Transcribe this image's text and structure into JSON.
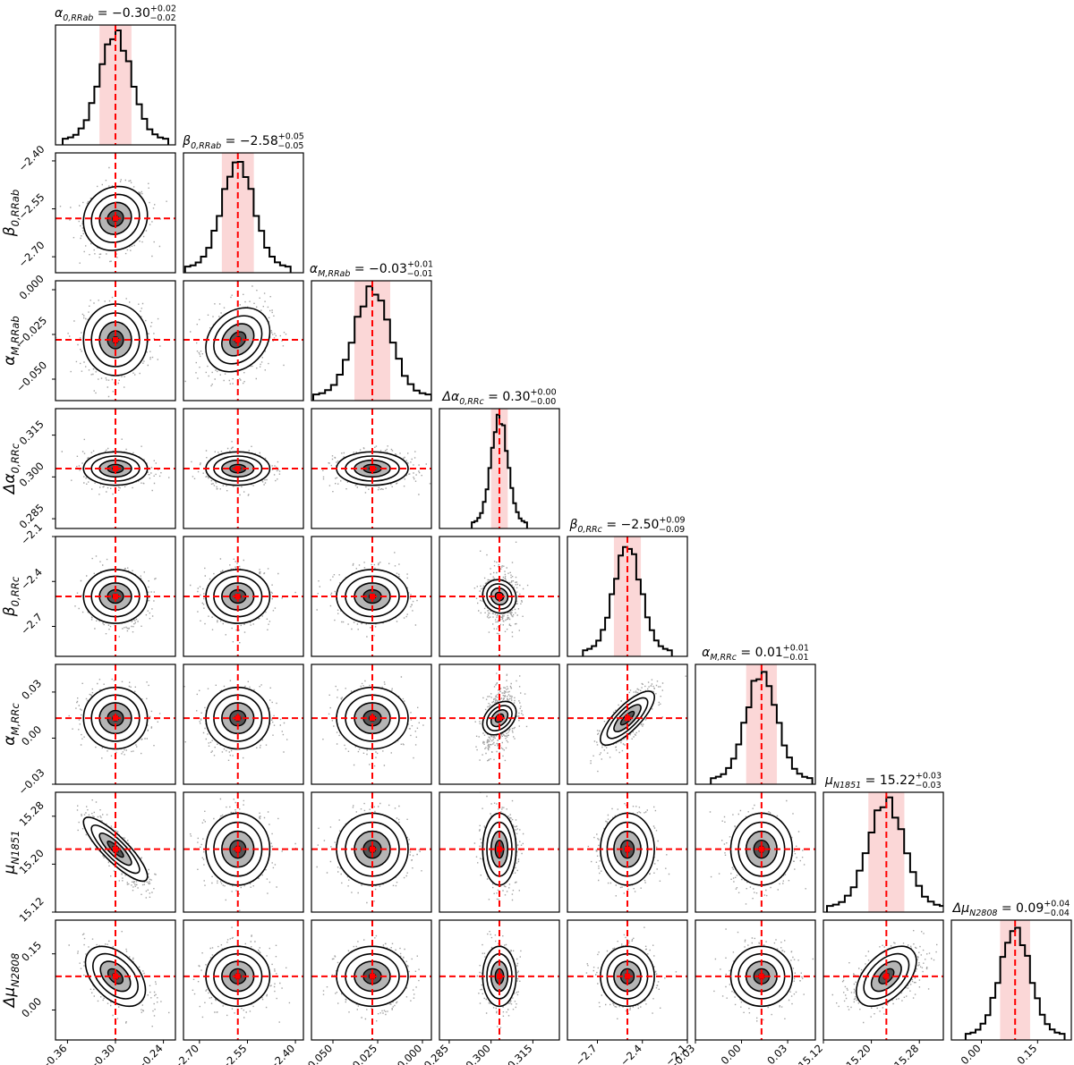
{
  "chart_data": {
    "type": "scatter",
    "subtype": "corner-plot",
    "description_colors": {
      "truth": "#ff0000",
      "band": "#fbd7d7",
      "contour": "#000000",
      "density": "#404040"
    },
    "parameters": [
      {
        "id": "alpha0_rrab",
        "label": "α_{0,RRab}",
        "title": "α_{0,RRab} = −0.30^{+0.02}_{−0.02}",
        "median": -0.3,
        "err_plus": 0.02,
        "err_minus": 0.02,
        "range": [
          -0.375,
          -0.225
        ],
        "ticks": [
          -0.36,
          -0.3,
          -0.24
        ],
        "tick_labels": [
          "−0.36",
          "−0.30",
          "−0.24"
        ]
      },
      {
        "id": "beta0_rrab",
        "label": "β_{0,RRab}",
        "title": "β_{0,RRab} = −2.58^{+0.05}_{−0.05}",
        "median": -2.58,
        "err_plus": 0.05,
        "err_minus": 0.05,
        "range": [
          -2.75,
          -2.375
        ],
        "ticks": [
          -2.7,
          -2.55,
          -2.4
        ],
        "tick_labels": [
          "−2.70",
          "−2.55",
          "−2.40"
        ]
      },
      {
        "id": "alphaM_rrab",
        "label": "α_{M,RRab}",
        "title": "α_{M,RRab} = −0.03^{+0.01}_{−0.01}",
        "median": -0.028,
        "err_plus": 0.01,
        "err_minus": 0.01,
        "range": [
          -0.062,
          0.005
        ],
        "ticks": [
          -0.05,
          -0.025,
          0.0
        ],
        "tick_labels": [
          "−0.050",
          "−0.025",
          "0.000"
        ]
      },
      {
        "id": "dalpha0_rrc",
        "label": "Δα_{0,RRc}",
        "title": "Δα_{0,RRc} = 0.30^{+0.00}_{−0.00}",
        "median": 0.303,
        "err_plus": 0.003,
        "err_minus": 0.003,
        "range": [
          0.2815,
          0.3245
        ],
        "ticks": [
          0.285,
          0.3,
          0.315
        ],
        "tick_labels": [
          "0.285",
          "0.300",
          "0.315"
        ]
      },
      {
        "id": "beta0_rrc",
        "label": "β_{0,RRc}",
        "title": "β_{0,RRc} = −2.50^{+0.09}_{−0.09}",
        "median": -2.5,
        "err_plus": 0.09,
        "err_minus": 0.09,
        "range": [
          -2.9,
          -2.1
        ],
        "ticks": [
          -2.7,
          -2.4,
          -2.1
        ],
        "tick_labels": [
          "−2.7",
          "−2.4",
          "−2.1"
        ]
      },
      {
        "id": "alphaM_rrc",
        "label": "α_{M,RRc}",
        "title": "α_{M,RRc} = 0.01^{+0.01}_{−0.01}",
        "median": 0.013,
        "err_plus": 0.01,
        "err_minus": 0.01,
        "range": [
          -0.03,
          0.048
        ],
        "ticks": [
          -0.03,
          0.0,
          0.03
        ],
        "tick_labels": [
          "−0.03",
          "0.00",
          "0.03"
        ]
      },
      {
        "id": "mu_n1851",
        "label": "μ_{N1851}",
        "title": "μ_{N1851} = 15.22^{+0.03}_{−0.03}",
        "median": 15.225,
        "err_plus": 0.03,
        "err_minus": 0.03,
        "range": [
          15.12,
          15.32
        ],
        "ticks": [
          15.12,
          15.2,
          15.28
        ],
        "tick_labels": [
          "15.12",
          "15.20",
          "15.28"
        ]
      },
      {
        "id": "dmu_n2808",
        "label": "Δμ_{N2808}",
        "title": "Δμ_{N2808} = 0.09^{+0.04}_{−0.04}",
        "median": 0.09,
        "err_plus": 0.04,
        "err_minus": 0.04,
        "range": [
          -0.08,
          0.24
        ],
        "ticks": [
          0.0,
          0.15
        ],
        "tick_labels": [
          "0.00",
          "0.15"
        ]
      }
    ],
    "correlations": [
      {
        "x": "alpha0_rrab",
        "y": "mu_n1851",
        "rho": -0.85
      },
      {
        "x": "alpha0_rrab",
        "y": "dmu_n2808",
        "rho": -0.45
      },
      {
        "x": "beta0_rrab",
        "y": "alphaM_rrab",
        "rho": 0.25
      },
      {
        "x": "dalpha0_rrc",
        "y": "alphaM_rrc",
        "rho": 0.35
      },
      {
        "x": "beta0_rrc",
        "y": "alphaM_rrc",
        "rho": 0.78
      },
      {
        "x": "mu_n1851",
        "y": "dmu_n2808",
        "rho": 0.5
      },
      {
        "x": "alpha0_rrab",
        "y": "beta0_rrab",
        "rho": 0.1
      },
      {
        "x": "dalpha0_rrc",
        "y": "beta0_rrc",
        "rho": -0.1
      }
    ],
    "contour_levels_sigma": [
      0.5,
      1.0,
      1.5,
      2.0
    ],
    "grid": false,
    "legend": "none"
  }
}
